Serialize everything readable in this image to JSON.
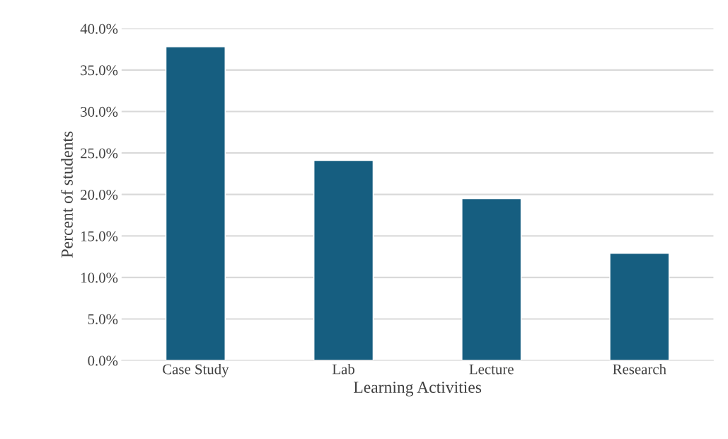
{
  "chart_data": {
    "type": "bar",
    "xlabel": "Learning Activities",
    "ylabel": "Percent of students",
    "categories": [
      "Case Study",
      "Lab",
      "Lecture",
      "Research"
    ],
    "values": [
      37.8,
      24.1,
      19.5,
      12.9
    ],
    "color": "#165e80",
    "ylim": [
      0,
      40
    ],
    "yticks": [
      {
        "value": 0,
        "label": "0.0%"
      },
      {
        "value": 5,
        "label": "5.0%"
      },
      {
        "value": 10,
        "label": "10.0%"
      },
      {
        "value": 15,
        "label": "15.0%"
      },
      {
        "value": 20,
        "label": "20.0%"
      },
      {
        "value": 25,
        "label": "25.0%"
      },
      {
        "value": 30,
        "label": "30.0%"
      },
      {
        "value": 35,
        "label": "35.0%"
      },
      {
        "value": 40,
        "label": "40.0%"
      }
    ],
    "grid": "y",
    "legend": false
  }
}
